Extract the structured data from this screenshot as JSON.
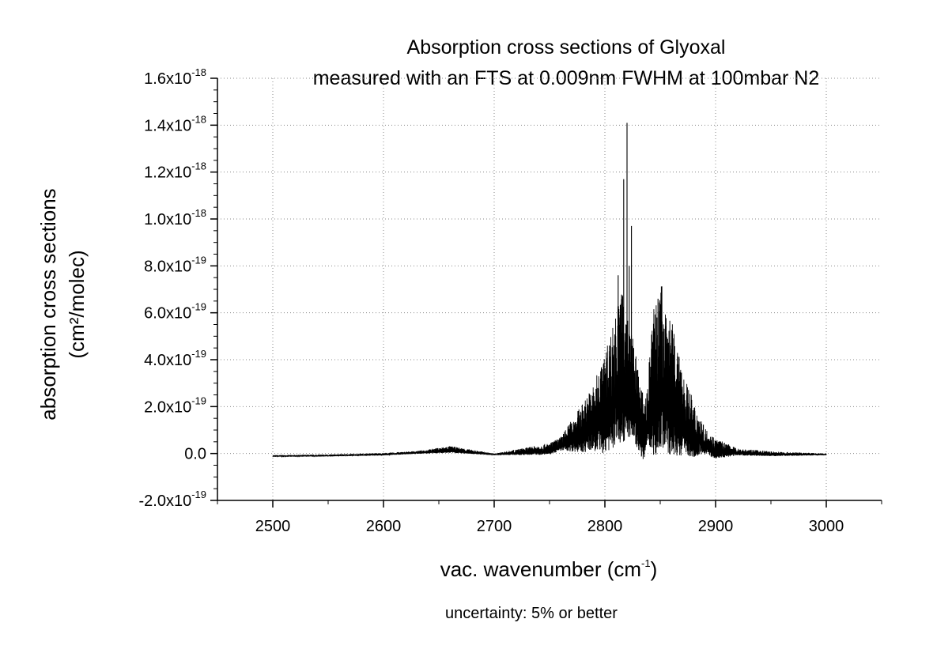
{
  "chart_data": {
    "type": "line",
    "title": "Absorption cross sections of Glyoxal",
    "subtitle": "measured with an FTS at 0.009nm FWHM at 100mbar N2",
    "xlabel": "vac. wavenumber (cm-1)",
    "xlabel_parts": {
      "text": "vac. wavenumber (cm",
      "sup": "-1",
      "close": ")"
    },
    "ylabel_lines": [
      "absorption cross sections",
      "(cm²/molec)"
    ],
    "annotation": "uncertainty: 5% or better",
    "xlim": [
      2450,
      3050
    ],
    "ylim": [
      -2e-19,
      1.6e-18
    ],
    "grid": true,
    "legend": "none",
    "line_color": "#000000",
    "x_ticks": [
      {
        "value": 2500,
        "label": "2500"
      },
      {
        "value": 2600,
        "label": "2600"
      },
      {
        "value": 2700,
        "label": "2700"
      },
      {
        "value": 2800,
        "label": "2800"
      },
      {
        "value": 2900,
        "label": "2900"
      },
      {
        "value": 3000,
        "label": "3000"
      }
    ],
    "y_ticks": [
      {
        "value": -2e-19,
        "mant": "-2.0x10",
        "exp": "-19"
      },
      {
        "value": 0.0,
        "mant": "0.0",
        "exp": ""
      },
      {
        "value": 2e-19,
        "mant": "2.0x10",
        "exp": "-19"
      },
      {
        "value": 4e-19,
        "mant": "4.0x10",
        "exp": "-19"
      },
      {
        "value": 6e-19,
        "mant": "6.0x10",
        "exp": "-19"
      },
      {
        "value": 8e-19,
        "mant": "8.0x10",
        "exp": "-19"
      },
      {
        "value": 1e-18,
        "mant": "1.0x10",
        "exp": "-18"
      },
      {
        "value": 1.2e-18,
        "mant": "1.2x10",
        "exp": "-18"
      },
      {
        "value": 1.4e-18,
        "mant": "1.4x10",
        "exp": "-18"
      },
      {
        "value": 1.6e-18,
        "mant": "1.6x10",
        "exp": "-18"
      }
    ],
    "series": [
      {
        "values_unit": "1e-19 cm2/molec",
        "baseline": [
          [
            2500,
            -0.12
          ],
          [
            2550,
            -0.1
          ],
          [
            2600,
            -0.05
          ],
          [
            2640,
            0.05
          ],
          [
            2660,
            0.12
          ],
          [
            2700,
            -0.05
          ],
          [
            2750,
            0.1
          ],
          [
            2780,
            0.7
          ],
          [
            2800,
            1.3
          ],
          [
            2815,
            2.5
          ],
          [
            2825,
            2.0
          ],
          [
            2835,
            0.5
          ],
          [
            2840,
            1.5
          ],
          [
            2850,
            2.5
          ],
          [
            2865,
            1.3
          ],
          [
            2880,
            0.6
          ],
          [
            2900,
            0.05
          ],
          [
            2950,
            -0.05
          ],
          [
            3000,
            -0.05
          ]
        ],
        "envelope": [
          [
            2500,
            0.05
          ],
          [
            2630,
            0.08
          ],
          [
            2660,
            0.2
          ],
          [
            2700,
            0.05
          ],
          [
            2760,
            0.4
          ],
          [
            2790,
            2.0
          ],
          [
            2805,
            3.5
          ],
          [
            2815,
            4.5
          ],
          [
            2825,
            3.0
          ],
          [
            2838,
            1.5
          ],
          [
            2845,
            5.0
          ],
          [
            2855,
            4.8
          ],
          [
            2870,
            2.5
          ],
          [
            2890,
            0.8
          ],
          [
            2920,
            0.2
          ],
          [
            3000,
            0.05
          ]
        ],
        "peaks": [
          [
            2808,
            4.2
          ],
          [
            2812,
            7.6
          ],
          [
            2815,
            6.2
          ],
          [
            2817,
            11.7
          ],
          [
            2819,
            5.5
          ],
          [
            2820,
            14.1
          ],
          [
            2822,
            8.0
          ],
          [
            2824,
            9.7
          ],
          [
            2826,
            4.5
          ],
          [
            2845,
            5.2
          ],
          [
            2847,
            5.8
          ],
          [
            2848,
            6.6
          ],
          [
            2850,
            5.0
          ],
          [
            2852,
            5.2
          ],
          [
            2856,
            4.3
          ]
        ]
      }
    ]
  }
}
